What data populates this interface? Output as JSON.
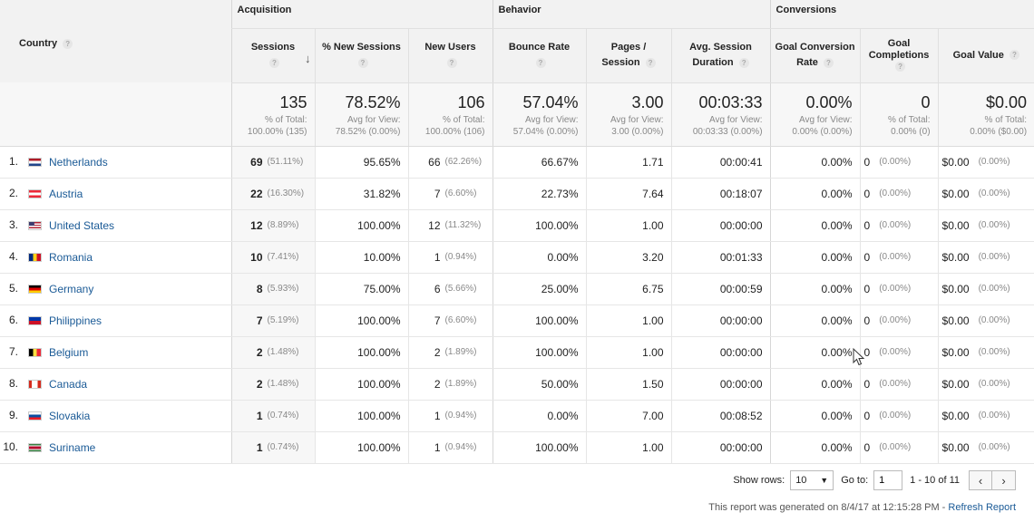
{
  "header": {
    "country_label": "Country",
    "groups": {
      "acquisition": "Acquisition",
      "behavior": "Behavior",
      "conversions": "Conversions"
    },
    "columns": {
      "sessions": "Sessions",
      "new_sessions": "% New Sessions",
      "new_users": "New Users",
      "bounce_rate": "Bounce Rate",
      "pages_session_1": "Pages /",
      "pages_session_2": "Session",
      "avg_duration_1": "Avg. Session",
      "avg_duration_2": "Duration",
      "goal_conv_1": "Goal Conversion",
      "goal_conv_2": "Rate",
      "goal_comp_1": "Goal",
      "goal_comp_2": "Completions",
      "goal_value": "Goal Value"
    },
    "help_glyph": "?",
    "sort_indicator": "↓"
  },
  "totals": {
    "sessions": {
      "value": "135",
      "sub1": "% of Total:",
      "sub2": "100.00% (135)"
    },
    "new_sessions": {
      "value": "78.52%",
      "sub1": "Avg for View:",
      "sub2": "78.52% (0.00%)"
    },
    "new_users": {
      "value": "106",
      "sub1": "% of Total:",
      "sub2": "100.00% (106)"
    },
    "bounce_rate": {
      "value": "57.04%",
      "sub1": "Avg for View:",
      "sub2": "57.04% (0.00%)"
    },
    "pages_session": {
      "value": "3.00",
      "sub1": "Avg for View:",
      "sub2": "3.00 (0.00%)"
    },
    "avg_duration": {
      "value": "00:03:33",
      "sub1": "Avg for View:",
      "sub2": "00:03:33 (0.00%)"
    },
    "goal_conv": {
      "value": "0.00%",
      "sub1": "Avg for View:",
      "sub2": "0.00% (0.00%)"
    },
    "goal_comp": {
      "value": "0",
      "sub1": "% of Total:",
      "sub2": "0.00% (0)"
    },
    "goal_value": {
      "value": "$0.00",
      "sub1": "% of Total:",
      "sub2": "0.00% ($0.00)"
    }
  },
  "rows": [
    {
      "idx": "1.",
      "country": "Netherlands",
      "flag": "netherlands-flag",
      "sessions": "69",
      "sessions_pct": "(51.11%)",
      "new_sessions": "95.65%",
      "new_users": "66",
      "new_users_pct": "(62.26%)",
      "bounce": "66.67%",
      "pages": "1.71",
      "duration": "00:00:41",
      "conv": "0.00%",
      "comp": "0",
      "comp_pct": "(0.00%)",
      "value": "$0.00",
      "value_pct": "(0.00%)"
    },
    {
      "idx": "2.",
      "country": "Austria",
      "flag": "austria-flag",
      "sessions": "22",
      "sessions_pct": "(16.30%)",
      "new_sessions": "31.82%",
      "new_users": "7",
      "new_users_pct": "(6.60%)",
      "bounce": "22.73%",
      "pages": "7.64",
      "duration": "00:18:07",
      "conv": "0.00%",
      "comp": "0",
      "comp_pct": "(0.00%)",
      "value": "$0.00",
      "value_pct": "(0.00%)"
    },
    {
      "idx": "3.",
      "country": "United States",
      "flag": "united-states-flag",
      "sessions": "12",
      "sessions_pct": "(8.89%)",
      "new_sessions": "100.00%",
      "new_users": "12",
      "new_users_pct": "(11.32%)",
      "bounce": "100.00%",
      "pages": "1.00",
      "duration": "00:00:00",
      "conv": "0.00%",
      "comp": "0",
      "comp_pct": "(0.00%)",
      "value": "$0.00",
      "value_pct": "(0.00%)"
    },
    {
      "idx": "4.",
      "country": "Romania",
      "flag": "romania-flag",
      "sessions": "10",
      "sessions_pct": "(7.41%)",
      "new_sessions": "10.00%",
      "new_users": "1",
      "new_users_pct": "(0.94%)",
      "bounce": "0.00%",
      "pages": "3.20",
      "duration": "00:01:33",
      "conv": "0.00%",
      "comp": "0",
      "comp_pct": "(0.00%)",
      "value": "$0.00",
      "value_pct": "(0.00%)"
    },
    {
      "idx": "5.",
      "country": "Germany",
      "flag": "germany-flag",
      "sessions": "8",
      "sessions_pct": "(5.93%)",
      "new_sessions": "75.00%",
      "new_users": "6",
      "new_users_pct": "(5.66%)",
      "bounce": "25.00%",
      "pages": "6.75",
      "duration": "00:00:59",
      "conv": "0.00%",
      "comp": "0",
      "comp_pct": "(0.00%)",
      "value": "$0.00",
      "value_pct": "(0.00%)"
    },
    {
      "idx": "6.",
      "country": "Philippines",
      "flag": "philippines-flag",
      "sessions": "7",
      "sessions_pct": "(5.19%)",
      "new_sessions": "100.00%",
      "new_users": "7",
      "new_users_pct": "(6.60%)",
      "bounce": "100.00%",
      "pages": "1.00",
      "duration": "00:00:00",
      "conv": "0.00%",
      "comp": "0",
      "comp_pct": "(0.00%)",
      "value": "$0.00",
      "value_pct": "(0.00%)"
    },
    {
      "idx": "7.",
      "country": "Belgium",
      "flag": "belgium-flag",
      "sessions": "2",
      "sessions_pct": "(1.48%)",
      "new_sessions": "100.00%",
      "new_users": "2",
      "new_users_pct": "(1.89%)",
      "bounce": "100.00%",
      "pages": "1.00",
      "duration": "00:00:00",
      "conv": "0.00%",
      "comp": "0",
      "comp_pct": "(0.00%)",
      "value": "$0.00",
      "value_pct": "(0.00%)"
    },
    {
      "idx": "8.",
      "country": "Canada",
      "flag": "canada-flag",
      "sessions": "2",
      "sessions_pct": "(1.48%)",
      "new_sessions": "100.00%",
      "new_users": "2",
      "new_users_pct": "(1.89%)",
      "bounce": "50.00%",
      "pages": "1.50",
      "duration": "00:00:00",
      "conv": "0.00%",
      "comp": "0",
      "comp_pct": "(0.00%)",
      "value": "$0.00",
      "value_pct": "(0.00%)"
    },
    {
      "idx": "9.",
      "country": "Slovakia",
      "flag": "slovakia-flag",
      "sessions": "1",
      "sessions_pct": "(0.74%)",
      "new_sessions": "100.00%",
      "new_users": "1",
      "new_users_pct": "(0.94%)",
      "bounce": "0.00%",
      "pages": "7.00",
      "duration": "00:08:52",
      "conv": "0.00%",
      "comp": "0",
      "comp_pct": "(0.00%)",
      "value": "$0.00",
      "value_pct": "(0.00%)"
    },
    {
      "idx": "10.",
      "country": "Suriname",
      "flag": "suriname-flag",
      "sessions": "1",
      "sessions_pct": "(0.74%)",
      "new_sessions": "100.00%",
      "new_users": "1",
      "new_users_pct": "(0.94%)",
      "bounce": "100.00%",
      "pages": "1.00",
      "duration": "00:00:00",
      "conv": "0.00%",
      "comp": "0",
      "comp_pct": "(0.00%)",
      "value": "$0.00",
      "value_pct": "(0.00%)"
    }
  ],
  "footer": {
    "show_rows_label": "Show rows:",
    "show_rows_value": "10",
    "goto_label": "Go to:",
    "goto_value": "1",
    "range_text": "1 - 10 of 11",
    "prev_glyph": "‹",
    "next_glyph": "›",
    "generated_text": "This report was generated on 8/4/17 at 12:15:28 PM - ",
    "refresh_link": "Refresh Report"
  },
  "colors": {
    "link": "#1a5a96",
    "header_bg": "#f2f2f2",
    "sorted_col_bg": "#f7f7f7"
  }
}
